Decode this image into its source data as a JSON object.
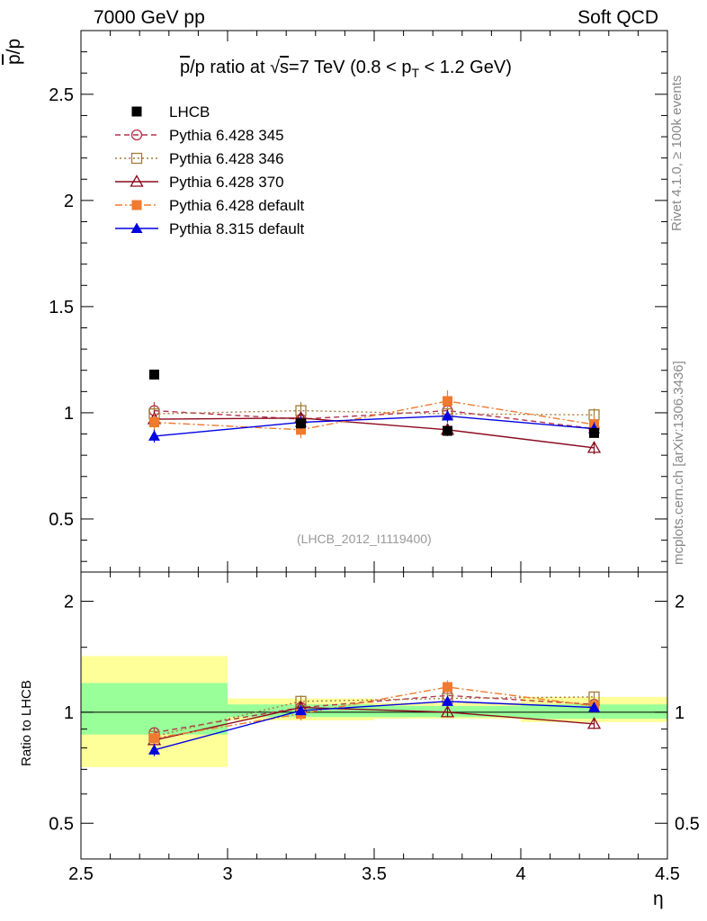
{
  "header": {
    "left": "7000 GeV pp",
    "right": "Soft QCD"
  },
  "side_labels": {
    "rivet": "Rivet 4.1.0, ≥ 100k events",
    "mcplots": "mcplots.cern.ch [arXiv:1306.3436]"
  },
  "chart_data": [
    {
      "type": "scatter",
      "title": "p̅/p ratio at √s=7 TeV (0.8 < p_T < 1.2 GeV)",
      "title_parts": {
        "p1": "p",
        "p2": "/p ratio at ",
        "sqrt": "√",
        "s": "s",
        "p3": "=7 TeV (0.8 < p",
        "sub": "T",
        "p4": " < 1.2 GeV)"
      },
      "ylabel": "p̅/p",
      "ylabel_parts": {
        "bar_p": "p",
        "rest": "/p"
      },
      "xlabel": "η",
      "xlim": [
        2.5,
        4.5
      ],
      "ylim": [
        0.25,
        2.8
      ],
      "x_ticks": [
        "2.5",
        "3",
        "3.5",
        "4",
        "4.5"
      ],
      "y_ticks": [
        "0.5",
        "1",
        "1.5",
        "2",
        "2.5"
      ],
      "x_bins": [
        [
          2.5,
          3.0
        ],
        [
          3.0,
          3.5
        ],
        [
          3.5,
          4.0
        ],
        [
          4.0,
          4.5
        ]
      ],
      "x": [
        2.75,
        3.25,
        3.75,
        4.25
      ],
      "annotation": "(LHCB_2012_I1119400)",
      "legend_position": "top-left",
      "series": [
        {
          "name": "LHCB",
          "values": [
            1.18,
            0.95,
            0.915,
            0.905
          ],
          "errors": [
            0,
            0,
            0,
            0
          ],
          "color": "#000000",
          "marker": "square-filled",
          "line": "none"
        },
        {
          "name": "Pythia 6.428 345",
          "values": [
            1.01,
            0.97,
            1.01,
            0.925
          ],
          "errors": [
            0.04,
            0.03,
            0.03,
            0.03
          ],
          "color": "#b2334c",
          "marker": "circle-open",
          "line": "dashed"
        },
        {
          "name": "Pythia 6.428 346",
          "values": [
            0.995,
            1.01,
            0.995,
            0.99
          ],
          "errors": [
            0.04,
            0.04,
            0.03,
            0.03
          ],
          "color": "#a37a3b",
          "marker": "square-open",
          "line": "dotted"
        },
        {
          "name": "Pythia 6.428 370",
          "values": [
            0.97,
            0.975,
            0.92,
            0.835
          ],
          "errors": [
            0.04,
            0.03,
            0.03,
            0.03
          ],
          "color": "#8b0a1e",
          "marker": "triangle-open",
          "line": "solid"
        },
        {
          "name": "Pythia 6.428 default",
          "values": [
            0.955,
            0.92,
            1.055,
            0.945
          ],
          "errors": [
            0.04,
            0.04,
            0.05,
            0.04
          ],
          "color": "#f07a2f",
          "marker": "square-filled",
          "line": "dashdot"
        },
        {
          "name": "Pythia 8.315 default",
          "values": [
            0.89,
            0.955,
            0.985,
            0.925
          ],
          "errors": [
            0.03,
            0.03,
            0.03,
            0.03
          ],
          "color": "#0000e0",
          "marker": "triangle-filled",
          "line": "solid"
        }
      ]
    },
    {
      "type": "scatter",
      "ylabel": "Ratio to LHCB",
      "ylim": [
        0.4,
        2.4
      ],
      "y_scale": "log",
      "y_ticks": [
        "0.5",
        "1",
        "2"
      ],
      "reference_line": 1,
      "x": [
        2.75,
        3.25,
        3.75,
        4.25
      ],
      "bands": [
        {
          "x": [
            2.5,
            3.0
          ],
          "green": [
            0.87,
            1.2
          ],
          "yellow": [
            0.71,
            1.42
          ]
        },
        {
          "x": [
            3.0,
            3.5
          ],
          "green": [
            0.97,
            1.05
          ],
          "yellow": [
            0.95,
            1.09
          ]
        },
        {
          "x": [
            3.5,
            4.0
          ],
          "green": [
            0.97,
            1.04
          ],
          "yellow": [
            0.96,
            1.06
          ]
        },
        {
          "x": [
            4.0,
            4.5
          ],
          "green": [
            0.96,
            1.05
          ],
          "yellow": [
            0.94,
            1.1
          ]
        }
      ],
      "series": [
        {
          "name": "Pythia 6.428 345",
          "values": [
            0.88,
            1.03,
            1.11,
            1.05
          ],
          "errors": [
            0.03,
            0.03,
            0.03,
            0.03
          ]
        },
        {
          "name": "Pythia 6.428 346",
          "values": [
            0.86,
            1.07,
            1.09,
            1.1
          ],
          "errors": [
            0.03,
            0.04,
            0.03,
            0.03
          ]
        },
        {
          "name": "Pythia 6.428 370",
          "values": [
            0.84,
            1.03,
            1.0,
            0.93
          ],
          "errors": [
            0.03,
            0.03,
            0.03,
            0.03
          ]
        },
        {
          "name": "Pythia 6.428 default",
          "values": [
            0.85,
            0.99,
            1.17,
            1.04
          ],
          "errors": [
            0.03,
            0.04,
            0.05,
            0.04
          ]
        },
        {
          "name": "Pythia 8.315 default",
          "values": [
            0.79,
            1.01,
            1.07,
            1.03
          ],
          "errors": [
            0.03,
            0.03,
            0.03,
            0.03
          ]
        }
      ]
    }
  ]
}
